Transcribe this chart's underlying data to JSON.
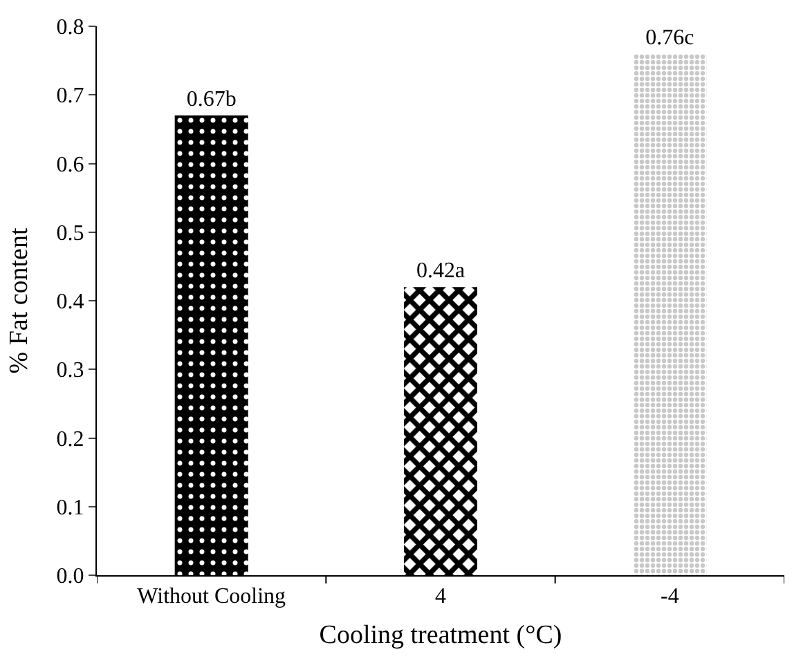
{
  "chart_data": {
    "type": "bar",
    "categories": [
      "Without Cooling",
      "4",
      "-4"
    ],
    "values": [
      0.67,
      0.42,
      0.76
    ],
    "value_labels": [
      "0.67b",
      "0.42a",
      "0.76c"
    ],
    "colors": [
      "#000000",
      "#000000",
      "#c8c8c8"
    ],
    "xlabel": "Cooling treatment (°C)",
    "ylabel": "% Fat content",
    "ylim": [
      0,
      0.8
    ],
    "yticks": [
      {
        "value": 0,
        "label": "0.0"
      },
      0.1,
      0.2,
      0.3,
      0.4,
      0.5,
      0.6,
      0.7,
      0.8
    ],
    "legend": false
  }
}
